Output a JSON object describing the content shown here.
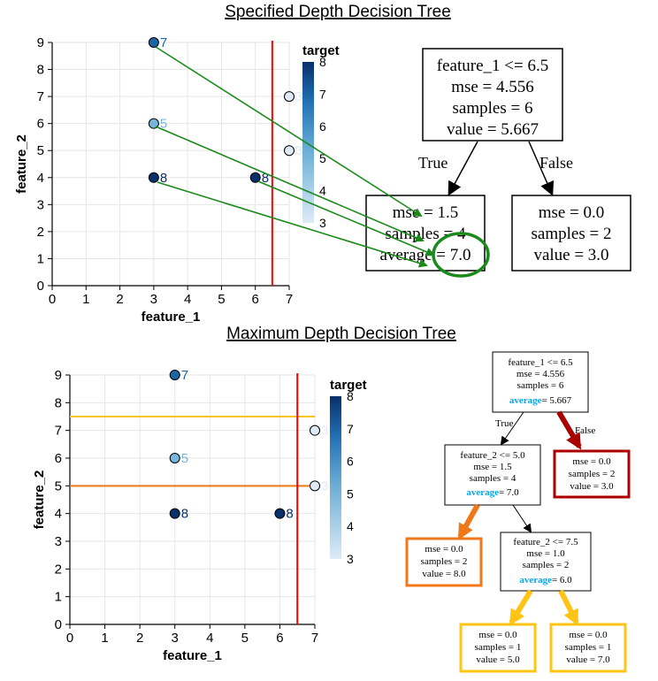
{
  "top_title": "Specified Depth Decision Tree",
  "bottom_title": "Maximum Depth Decision Tree",
  "colors": {
    "split_line": "#ff0000",
    "orange_split": "#f07818",
    "yellow_split": "#ffc414",
    "arrow_green": "#1a8a1a",
    "false_edge_red": "#aa0000",
    "avg_blue": "#00aaee"
  },
  "chart_data": [
    {
      "type": "scatter",
      "xlabel": "feature_1",
      "ylabel": "feature_2",
      "xlim": [
        0,
        7
      ],
      "ylim": [
        0,
        9
      ],
      "xticks": [
        "0",
        "1",
        "2",
        "3",
        "4",
        "5",
        "6",
        "7"
      ],
      "yticks": [
        "0",
        "1",
        "2",
        "3",
        "4",
        "5",
        "6",
        "7",
        "8",
        "9"
      ],
      "grid": true,
      "points": [
        {
          "x": 3,
          "y": 9,
          "label": "7",
          "target": 7
        },
        {
          "x": 3,
          "y": 6,
          "label": "5",
          "target": 5
        },
        {
          "x": 3,
          "y": 4,
          "label": "8",
          "target": 8
        },
        {
          "x": 6,
          "y": 4,
          "label": "8",
          "target": 8
        },
        {
          "x": 7,
          "y": 7,
          "label": "3",
          "target": 3
        },
        {
          "x": 7,
          "y": 5,
          "label": "3",
          "target": 3
        }
      ],
      "vlines": [
        6.5
      ],
      "hlines": [],
      "legend": {
        "title": "target",
        "ticks": [
          "8",
          "7",
          "6",
          "5",
          "4",
          "3"
        ],
        "range": [
          3,
          8
        ],
        "placement": "right"
      }
    },
    {
      "type": "scatter",
      "xlabel": "feature_1",
      "ylabel": "feature_2",
      "xlim": [
        0,
        7
      ],
      "ylim": [
        0,
        9
      ],
      "xticks": [
        "0",
        "1",
        "2",
        "3",
        "4",
        "5",
        "6",
        "7"
      ],
      "yticks": [
        "0",
        "1",
        "2",
        "3",
        "4",
        "5",
        "6",
        "7",
        "8",
        "9"
      ],
      "grid": true,
      "points": [
        {
          "x": 3,
          "y": 9,
          "label": "7",
          "target": 7
        },
        {
          "x": 3,
          "y": 6,
          "label": "5",
          "target": 5
        },
        {
          "x": 3,
          "y": 4,
          "label": "8",
          "target": 8
        },
        {
          "x": 6,
          "y": 4,
          "label": "8",
          "target": 8
        },
        {
          "x": 7,
          "y": 7,
          "label": "3",
          "target": 3
        },
        {
          "x": 7,
          "y": 5,
          "label": "3",
          "target": 3
        }
      ],
      "vlines": [
        6.5
      ],
      "hlines": [
        7.5,
        5.0
      ],
      "legend": {
        "title": "target",
        "ticks": [
          "8",
          "7",
          "6",
          "5",
          "4",
          "3"
        ],
        "range": [
          3,
          8
        ],
        "placement": "right"
      }
    }
  ],
  "top_tree": {
    "root": [
      "feature_1 <= 6.5",
      "mse = 4.556",
      "samples = 6",
      "value = 5.667"
    ],
    "true_label": "True",
    "false_label": "False",
    "left": {
      "line1": "mse = 1.5",
      "line2": "samples = 4",
      "avg_word": "average",
      "avg_value": " = 7.0"
    },
    "right": [
      "mse = 0.0",
      "samples = 2",
      "value = 3.0"
    ]
  },
  "bottom_tree": {
    "true_label": "True",
    "false_label": "False",
    "root": {
      "l1": "feature_1 <= 6.5",
      "l2": "mse = 4.556",
      "l3": "samples = 6",
      "avg_word": "average",
      "avg_value": "= 5.667"
    },
    "n1": {
      "l1": "feature_2 <= 5.0",
      "l2": "mse = 1.5",
      "l3": "samples = 4",
      "avg_word": "average",
      "avg_value": "= 7.0"
    },
    "n2": [
      "mse = 0.0",
      "samples = 2",
      "value = 3.0"
    ],
    "n3": [
      "mse = 0.0",
      "samples = 2",
      "value = 8.0"
    ],
    "n4": {
      "l1": "feature_2 <= 7.5",
      "l2": "mse = 1.0",
      "l3": "samples = 2",
      "avg_word": "average",
      "avg_value": "= 6.0"
    },
    "n5": [
      "mse = 0.0",
      "samples = 1",
      "value = 5.0"
    ],
    "n6": [
      "mse = 0.0",
      "samples = 1",
      "value = 7.0"
    ]
  }
}
